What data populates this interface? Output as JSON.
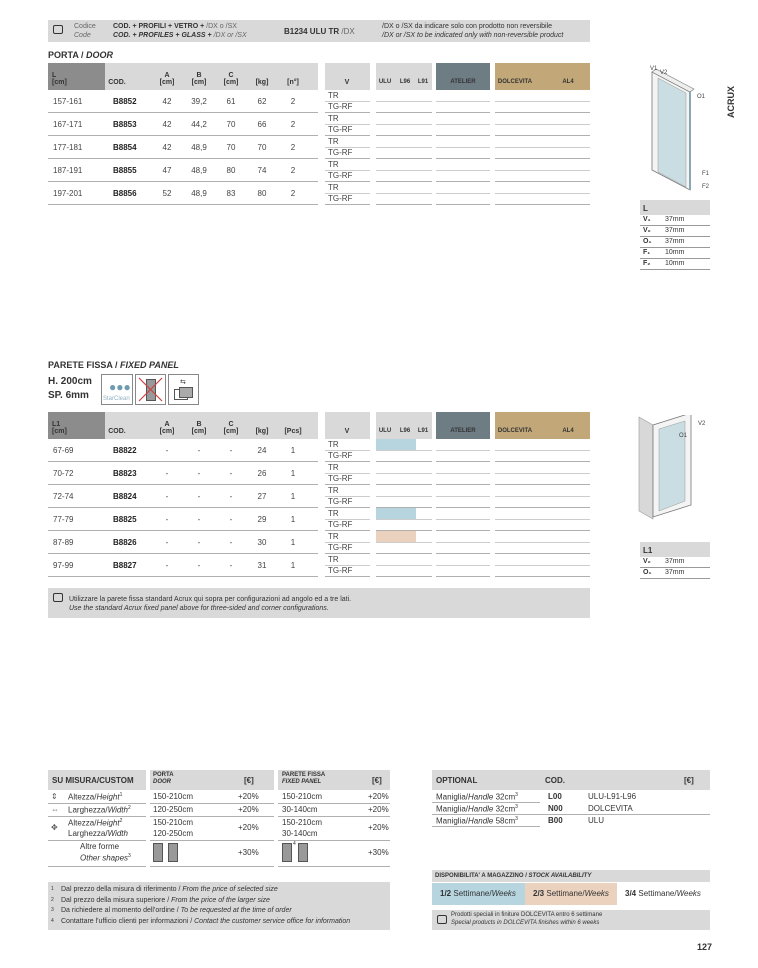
{
  "info_bar": {
    "code_it": "Codice",
    "code_en": "Code",
    "formula_it": "COD. + PROFILI + VETRO +",
    "formula_it_suffix": "/DX o /SX",
    "formula_en": "COD. + PROFILES + GLASS +",
    "formula_en_suffix": "/DX or /SX",
    "example": "B1234 ULU TR",
    "example_suffix": "/DX",
    "note_it": "/DX o /SX da indicare solo con prodotto non reversibile",
    "note_en": "/DX or /SX to be indicated only with non-reversible product"
  },
  "side_label": "ACRUX",
  "door": {
    "title_it": "PORTA /",
    "title_en": "DOOR",
    "headers": {
      "l": "L",
      "l_unit": "[cm]",
      "cod": "COD.",
      "a": "A",
      "b": "B",
      "c": "C",
      "unit": "[cm]",
      "kg": "[kg]",
      "n": "[n°]",
      "v": "V",
      "ulu": "ULU",
      "l96": "L96",
      "l91": "L91",
      "atelier": "ATELIER",
      "dolcevita": "DOLCEVITA",
      "al4": "AL4"
    },
    "rows": [
      {
        "l": "157-161",
        "cod": "B8852",
        "a": "42",
        "b": "39,2",
        "c": "61",
        "kg": "62",
        "n": "2",
        "v1": "TR",
        "v2": "TG-RF"
      },
      {
        "l": "167-171",
        "cod": "B8853",
        "a": "42",
        "b": "44,2",
        "c": "70",
        "kg": "66",
        "n": "2",
        "v1": "TR",
        "v2": "TG-RF"
      },
      {
        "l": "177-181",
        "cod": "B8854",
        "a": "42",
        "b": "48,9",
        "c": "70",
        "kg": "70",
        "n": "2",
        "v1": "TR",
        "v2": "TG-RF"
      },
      {
        "l": "187-191",
        "cod": "B8855",
        "a": "47",
        "b": "48,9",
        "c": "80",
        "kg": "74",
        "n": "2",
        "v1": "TR",
        "v2": "TG-RF"
      },
      {
        "l": "197-201",
        "cod": "B8856",
        "a": "52",
        "b": "48,9",
        "c": "83",
        "kg": "80",
        "n": "2",
        "v1": "TR",
        "v2": "TG-RF"
      }
    ],
    "dims": {
      "header": "L",
      "rows": [
        {
          "k": "V₁",
          "v": "37mm"
        },
        {
          "k": "V₂",
          "v": "37mm"
        },
        {
          "k": "O₁",
          "v": "37mm"
        },
        {
          "k": "F₁",
          "v": "10mm"
        },
        {
          "k": "F₂",
          "v": "10mm"
        }
      ]
    },
    "diagram_labels": [
      "V1",
      "V2",
      "O1",
      "F1",
      "F2"
    ]
  },
  "panel": {
    "title_it": "PARETE FISSA /",
    "title_en": "FIXED PANEL",
    "height": "H. 200cm",
    "thickness": "SP. 6mm",
    "icons": {
      "starclean": "StarClean"
    },
    "headers": {
      "l": "L1",
      "l_unit": "[cm]",
      "cod": "COD.",
      "a": "A",
      "b": "B",
      "c": "C",
      "unit": "[cm]",
      "kg": "[kg]",
      "n": "[Pcs]",
      "v": "V",
      "ulu": "ULU",
      "l96": "L96",
      "l91": "L91",
      "atelier": "ATELIER",
      "dolcevita": "DOLCEVITA",
      "al4": "AL4"
    },
    "rows": [
      {
        "l": "67-69",
        "cod": "B8822",
        "a": "-",
        "b": "-",
        "c": "-",
        "kg": "24",
        "n": "1",
        "v1": "TR",
        "v2": "TG-RF",
        "stock": "1/2"
      },
      {
        "l": "70-72",
        "cod": "B8823",
        "a": "-",
        "b": "-",
        "c": "-",
        "kg": "26",
        "n": "1",
        "v1": "TR",
        "v2": "TG-RF"
      },
      {
        "l": "72-74",
        "cod": "B8824",
        "a": "-",
        "b": "-",
        "c": "-",
        "kg": "27",
        "n": "1",
        "v1": "TR",
        "v2": "TG-RF"
      },
      {
        "l": "77-79",
        "cod": "B8825",
        "a": "-",
        "b": "-",
        "c": "-",
        "kg": "29",
        "n": "1",
        "v1": "TR",
        "v2": "TG-RF",
        "stock": "1/2"
      },
      {
        "l": "87-89",
        "cod": "B8826",
        "a": "-",
        "b": "-",
        "c": "-",
        "kg": "30",
        "n": "1",
        "v1": "TR",
        "v2": "TG-RF",
        "stock": "2/3"
      },
      {
        "l": "97-99",
        "cod": "B8827",
        "a": "-",
        "b": "-",
        "c": "-",
        "kg": "31",
        "n": "1",
        "v1": "TR",
        "v2": "TG-RF"
      }
    ],
    "note_it": "Utilizzare la parete fissa standard Acrux qui sopra per configurazioni ad angolo ed a tre lati.",
    "note_en": "Use the standard Acrux fixed panel above for three-sided and corner configurations.",
    "dims": {
      "header": "L1",
      "rows": [
        {
          "k": "V₂",
          "v": "37mm"
        },
        {
          "k": "O₁",
          "v": "37mm"
        }
      ]
    },
    "diagram_labels": [
      "V2",
      "O1"
    ]
  },
  "custom": {
    "title": "SU MISURA/CUSTOM",
    "door_it": "PORTA",
    "door_en": "DOOR",
    "price": "[€]",
    "panel_it": "PARETE FISSA",
    "panel_en": "FIXED PANEL",
    "rows": [
      {
        "it": "Altezza/",
        "en": "Height",
        "sup": "1",
        "door": "150-210cm",
        "door_pct": "+20%",
        "panel": "150-210cm",
        "panel_pct": "+20%"
      },
      {
        "it": "Larghezza/",
        "en": "Width",
        "sup": "2",
        "door": "120-250cm",
        "door_pct": "+20%",
        "panel": "30-140cm",
        "panel_pct": "+20%"
      },
      {
        "it": "Altezza/",
        "en": "Height",
        "it2": "Larghezza/",
        "en2": "Width",
        "sup": "2",
        "door": "150-210cm",
        "door2": "120-250cm",
        "door_pct": "+20%",
        "panel": "150-210cm",
        "panel2": "30-140cm",
        "panel_pct": "+20%"
      },
      {
        "it": "Altre forme",
        "en": "Other shapes",
        "sup": "3",
        "door_pct": "+30%",
        "panel_pct": "+30%",
        "panel_shape_sup": "4"
      }
    ]
  },
  "footnotes": [
    {
      "n": "1",
      "it": "Dal prezzo della misura di riferimento /",
      "en": "From the price of selected size"
    },
    {
      "n": "2",
      "it": "Dal prezzo della misura superiore /",
      "en": "From the price of the larger size"
    },
    {
      "n": "3",
      "it": "Da richiedere al momento dell'ordine /",
      "en": "To be requested at the time of order"
    },
    {
      "n": "4",
      "it": "Contattare l'ufficio clienti per informazioni /",
      "en": "Contact the customer service office for information"
    }
  ],
  "optional": {
    "title": "OPTIONAL",
    "cod": "COD.",
    "price": "[€]",
    "rows": [
      {
        "it": "Maniglia/",
        "en": "Handle",
        "size": "32cm",
        "sup": "3",
        "cod": "L00",
        "finish": "ULU-L91-L96"
      },
      {
        "it": "Maniglia/",
        "en": "Handle",
        "size": "32cm",
        "sup": "3",
        "cod": "N00",
        "finish": "DOLCEVITA"
      },
      {
        "it": "Maniglia/",
        "en": "Handle",
        "size": "58cm",
        "sup": "3",
        "cod": "B00",
        "finish": "ULU"
      }
    ]
  },
  "stock": {
    "title_it": "DISPONIBILITA' A MAGAZZINO /",
    "title_en": "STOCK AVAILABILITY",
    "items": [
      {
        "k": "1/2",
        "it": "Settimane/",
        "en": "Weeks",
        "color": "#b6d5df"
      },
      {
        "k": "2/3",
        "it": "Settimane/",
        "en": "Weeks",
        "color": "#ebd2be"
      },
      {
        "k": "3/4",
        "it": "Settimane/",
        "en": "Weeks",
        "color": "#ffffff"
      }
    ],
    "note_it": "Prodotti speciali in finiture DOLCEVITA entro 6 settimane",
    "note_en": "Special products in DOLCEVITA finishes within 6 weeks"
  },
  "colors": {
    "l_header": "#8c8c8c",
    "header": "#d9d9d9",
    "atelier": "#6e7c84",
    "dolcevita": "#c2a878",
    "stock_1_2": "#b6d5df",
    "stock_2_3": "#ebd2be"
  },
  "page_number": "127"
}
